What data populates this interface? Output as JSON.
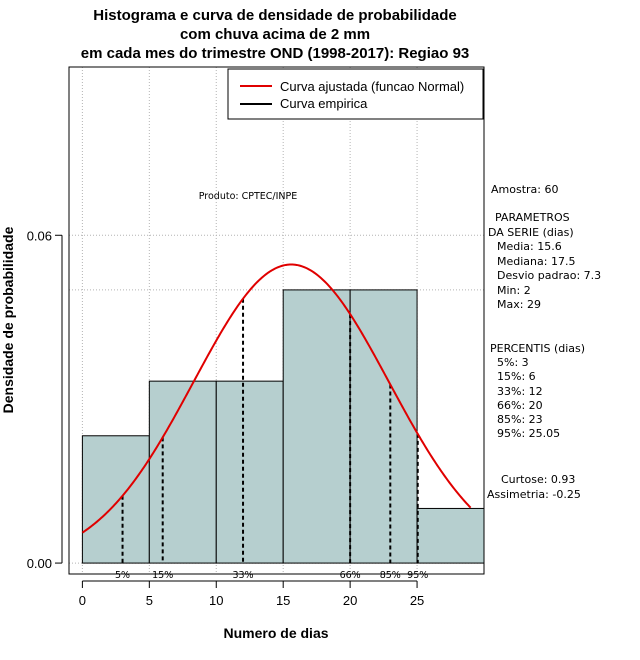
{
  "colors": {
    "bar_fill": "#b6cfcf",
    "curve": "#e00000",
    "grid": "#b4b4b4"
  },
  "chart_data": {
    "type": "histogram",
    "title_lines": [
      "Histograma e curva de densidade de probabilidade",
      "com chuva acima de 2 mm",
      "em cada mes do trimestre OND (1998-2017): Regiao 93"
    ],
    "xlabel": "Numero de dias",
    "ylabel": "Densidade de probabilidade",
    "xlim": [
      -1,
      30
    ],
    "ylim": [
      -0.002,
      0.0908
    ],
    "x_ticks": [
      "0",
      "5",
      "10",
      "15",
      "20",
      "25"
    ],
    "x_tick_values": [
      0,
      5,
      10,
      15,
      20,
      25
    ],
    "y_ticks": [
      "0.00",
      "0.06"
    ],
    "y_tick_values": [
      0.0,
      0.06
    ],
    "bins": [
      {
        "start": 0,
        "end": 5,
        "density": 0.0233
      },
      {
        "start": 5,
        "end": 10,
        "density": 0.0333
      },
      {
        "start": 10,
        "end": 15,
        "density": 0.0333
      },
      {
        "start": 15,
        "end": 20,
        "density": 0.05
      },
      {
        "start": 20,
        "end": 25,
        "density": 0.05
      },
      {
        "start": 25,
        "end": 30,
        "density": 0.01
      }
    ],
    "normal_fit": {
      "mean": 15.6,
      "sd": 7.3
    },
    "max_density_line": 0.05,
    "percentiles": [
      {
        "label": "5%",
        "value": 3
      },
      {
        "label": "15%",
        "value": 6
      },
      {
        "label": "33%",
        "value": 12
      },
      {
        "label": "66%",
        "value": 20
      },
      {
        "label": "85%",
        "value": 23
      },
      {
        "label": "95%",
        "value": 25.05
      }
    ],
    "legend": {
      "position": "top-right",
      "items": [
        {
          "label": "Curva ajustada (funcao Normal)",
          "color": "#e00000"
        },
        {
          "label": "Curva empirica",
          "color": "#000000"
        }
      ]
    },
    "product_label": "Produto: CPTEC/INPE",
    "stats": {
      "amostra": "Amostra: 60",
      "parametros_title_1": "PARAMETROS",
      "parametros_title_2": "DA SERIE (dias)",
      "media": "Media: 15.6",
      "mediana": "Mediana: 17.5",
      "desvio": "Desvio padrao: 7.3",
      "min": "Min: 2",
      "max": "Max: 29",
      "percentis_title": "PERCENTIS (dias)",
      "p5": "5%: 3",
      "p15": "15%: 6",
      "p33": "33%: 12",
      "p66": "66%: 20",
      "p85": "85%: 23",
      "p95": "95%: 25.05",
      "curtose": "Curtose: 0.93",
      "assimetria": "Assimetria: -0.25"
    }
  }
}
